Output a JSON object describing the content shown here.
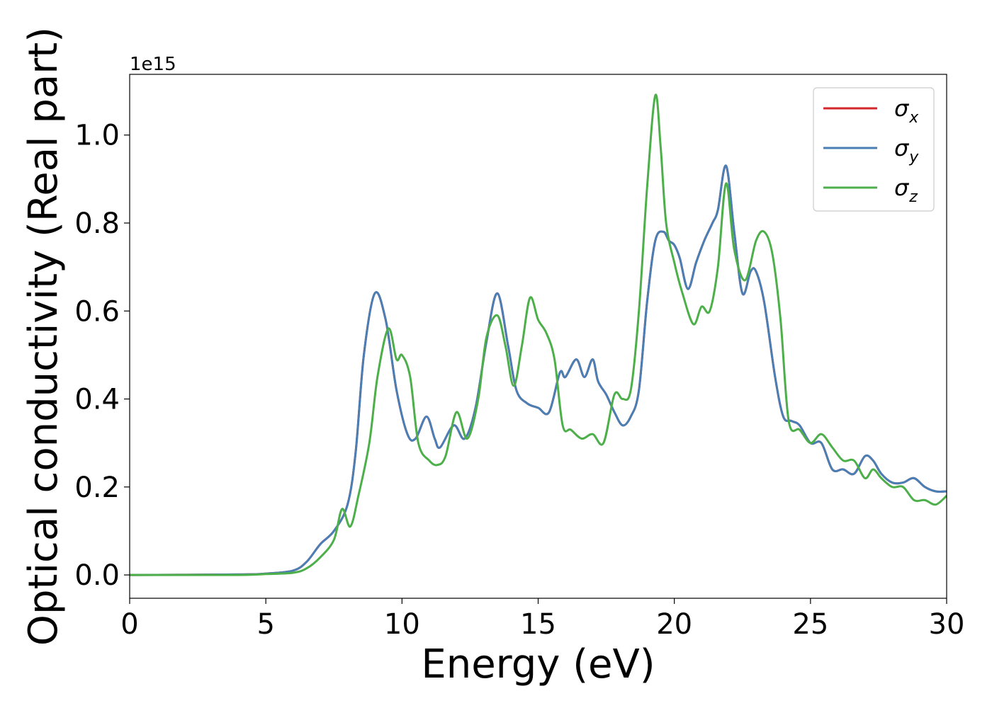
{
  "chart_data": {
    "type": "line",
    "title": "",
    "xlabel": "Energy (eV)",
    "ylabel": "Optical conductivity (Real part)",
    "y_offset_text": "1e15",
    "xlim": [
      0,
      30
    ],
    "ylim": [
      -0.053,
      1.138
    ],
    "x_ticks": [
      0,
      5,
      10,
      15,
      20,
      25,
      30
    ],
    "x_tick_labels": [
      "0",
      "5",
      "10",
      "15",
      "20",
      "25",
      "30"
    ],
    "y_ticks": [
      0.0,
      0.2,
      0.4,
      0.6,
      0.8,
      1.0
    ],
    "y_tick_labels": [
      "0.0",
      "0.2",
      "0.4",
      "0.6",
      "0.8",
      "1.0"
    ],
    "grid": false,
    "legend_position": "top-right",
    "series": [
      {
        "name": "σx",
        "legend_symbol": "σ",
        "legend_subscript": "x",
        "color": "#d62728",
        "x": [
          0,
          4,
          5,
          6,
          6.5,
          7,
          7.5,
          8,
          8.3,
          8.6,
          9.0,
          9.4,
          9.8,
          10.2,
          10.5,
          10.9,
          11.2,
          11.4,
          11.9,
          12.3,
          12.7,
          13.1,
          13.5,
          13.9,
          14.2,
          14.6,
          15.0,
          15.4,
          15.8,
          16.0,
          16.4,
          16.7,
          17.0,
          17.2,
          17.5,
          17.8,
          18.1,
          18.4,
          18.7,
          19.0,
          19.3,
          19.6,
          19.8,
          20.0,
          20.2,
          20.5,
          20.8,
          21.1,
          21.4,
          21.6,
          21.9,
          22.2,
          22.5,
          22.8,
          23.0,
          23.3,
          23.7,
          24.0,
          24.3,
          24.6,
          25.0,
          25.4,
          25.8,
          26.2,
          26.6,
          27.0,
          27.3,
          27.6,
          28.0,
          28.4,
          28.8,
          29.2,
          29.6,
          30.0
        ],
        "y": [
          0.0,
          0.001,
          0.003,
          0.01,
          0.03,
          0.07,
          0.1,
          0.16,
          0.28,
          0.5,
          0.64,
          0.58,
          0.42,
          0.32,
          0.31,
          0.36,
          0.31,
          0.29,
          0.34,
          0.31,
          0.38,
          0.53,
          0.64,
          0.52,
          0.42,
          0.39,
          0.38,
          0.37,
          0.46,
          0.45,
          0.49,
          0.45,
          0.49,
          0.44,
          0.41,
          0.37,
          0.34,
          0.36,
          0.42,
          0.62,
          0.76,
          0.78,
          0.76,
          0.75,
          0.72,
          0.65,
          0.71,
          0.76,
          0.8,
          0.83,
          0.93,
          0.78,
          0.64,
          0.69,
          0.69,
          0.62,
          0.45,
          0.36,
          0.35,
          0.34,
          0.3,
          0.3,
          0.24,
          0.24,
          0.23,
          0.27,
          0.26,
          0.23,
          0.21,
          0.21,
          0.22,
          0.2,
          0.19,
          0.19
        ]
      },
      {
        "name": "σy",
        "legend_symbol": "σ",
        "legend_subscript": "y",
        "color": "#4a7fb5",
        "x": [
          0,
          4,
          5,
          6,
          6.5,
          7,
          7.5,
          8,
          8.3,
          8.6,
          9.0,
          9.4,
          9.8,
          10.2,
          10.5,
          10.9,
          11.2,
          11.4,
          11.9,
          12.3,
          12.7,
          13.1,
          13.5,
          13.9,
          14.2,
          14.6,
          15.0,
          15.4,
          15.8,
          16.0,
          16.4,
          16.7,
          17.0,
          17.2,
          17.5,
          17.8,
          18.1,
          18.4,
          18.7,
          19.0,
          19.3,
          19.6,
          19.8,
          20.0,
          20.2,
          20.5,
          20.8,
          21.1,
          21.4,
          21.6,
          21.9,
          22.2,
          22.5,
          22.8,
          23.0,
          23.3,
          23.7,
          24.0,
          24.3,
          24.6,
          25.0,
          25.4,
          25.8,
          26.2,
          26.6,
          27.0,
          27.3,
          27.6,
          28.0,
          28.4,
          28.8,
          29.2,
          29.6,
          30.0
        ],
        "y": [
          0.0,
          0.001,
          0.003,
          0.01,
          0.03,
          0.07,
          0.1,
          0.16,
          0.28,
          0.5,
          0.64,
          0.58,
          0.42,
          0.32,
          0.31,
          0.36,
          0.31,
          0.29,
          0.34,
          0.31,
          0.38,
          0.53,
          0.64,
          0.52,
          0.42,
          0.39,
          0.38,
          0.37,
          0.46,
          0.45,
          0.49,
          0.45,
          0.49,
          0.44,
          0.41,
          0.37,
          0.34,
          0.36,
          0.42,
          0.62,
          0.76,
          0.78,
          0.76,
          0.75,
          0.72,
          0.65,
          0.71,
          0.76,
          0.8,
          0.83,
          0.93,
          0.78,
          0.64,
          0.69,
          0.69,
          0.62,
          0.45,
          0.36,
          0.35,
          0.34,
          0.3,
          0.3,
          0.24,
          0.24,
          0.23,
          0.27,
          0.26,
          0.23,
          0.21,
          0.21,
          0.22,
          0.2,
          0.19,
          0.19
        ]
      },
      {
        "name": "σz",
        "legend_symbol": "σ",
        "legend_subscript": "z",
        "color": "#4daf4a",
        "x": [
          0,
          4,
          5,
          6,
          6.5,
          7,
          7.5,
          7.8,
          8.1,
          8.4,
          8.8,
          9.1,
          9.5,
          9.8,
          10.0,
          10.3,
          10.6,
          11.0,
          11.3,
          11.6,
          12.0,
          12.4,
          12.8,
          13.1,
          13.5,
          13.8,
          14.1,
          14.4,
          14.7,
          15.0,
          15.3,
          15.6,
          15.9,
          16.2,
          16.6,
          17.0,
          17.4,
          17.8,
          18.1,
          18.4,
          18.7,
          19.0,
          19.3,
          19.5,
          19.7,
          20.0,
          20.3,
          20.7,
          21.0,
          21.3,
          21.6,
          21.9,
          22.2,
          22.6,
          23.0,
          23.3,
          23.6,
          23.9,
          24.2,
          24.6,
          25.0,
          25.4,
          25.8,
          26.2,
          26.6,
          27.0,
          27.3,
          27.6,
          28.0,
          28.4,
          28.8,
          29.2,
          29.6,
          30.0
        ],
        "y": [
          0.0,
          0.0,
          0.002,
          0.005,
          0.015,
          0.04,
          0.08,
          0.15,
          0.11,
          0.18,
          0.3,
          0.45,
          0.56,
          0.49,
          0.5,
          0.45,
          0.3,
          0.26,
          0.25,
          0.27,
          0.37,
          0.31,
          0.4,
          0.54,
          0.59,
          0.52,
          0.43,
          0.52,
          0.63,
          0.58,
          0.55,
          0.49,
          0.34,
          0.33,
          0.31,
          0.32,
          0.3,
          0.41,
          0.4,
          0.42,
          0.6,
          0.88,
          1.09,
          0.97,
          0.8,
          0.71,
          0.64,
          0.57,
          0.61,
          0.6,
          0.7,
          0.89,
          0.74,
          0.67,
          0.76,
          0.78,
          0.73,
          0.58,
          0.35,
          0.33,
          0.3,
          0.32,
          0.29,
          0.26,
          0.26,
          0.22,
          0.24,
          0.22,
          0.2,
          0.2,
          0.17,
          0.17,
          0.16,
          0.18
        ]
      }
    ]
  }
}
